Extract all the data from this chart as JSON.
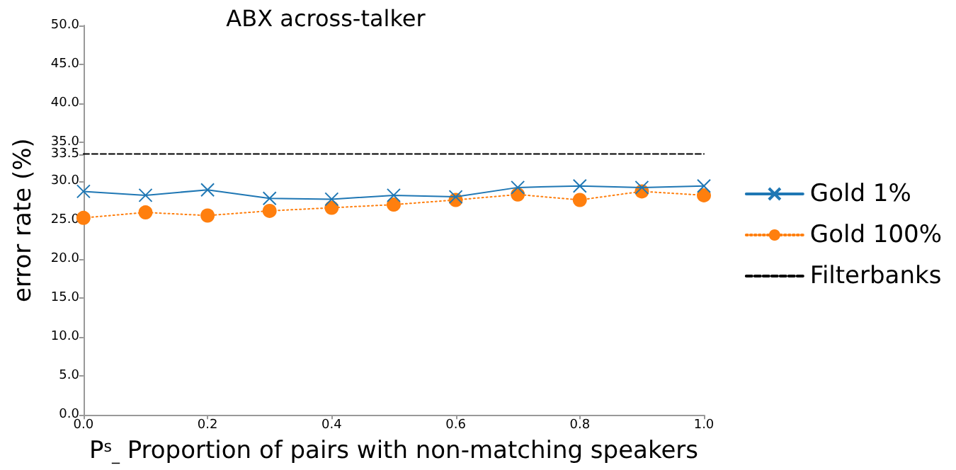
{
  "chart_data": {
    "type": "line",
    "title": "ABX across-talker",
    "xlabel": "P$^{s}$$_{_}$ Proportion of pairs with non-matching speakers",
    "ylabel": "error rate (%)",
    "x": [
      0.0,
      0.1,
      0.2,
      0.3,
      0.4,
      0.5,
      0.6,
      0.7,
      0.8,
      0.9,
      1.0
    ],
    "series": [
      {
        "name": "Gold 1%",
        "color": "#1f77b4",
        "marker": "cross",
        "line_style": "solid",
        "values": [
          28.7,
          28.2,
          28.9,
          27.8,
          27.7,
          28.2,
          28.0,
          29.2,
          29.4,
          29.2,
          29.4
        ]
      },
      {
        "name": "Gold 100%",
        "color": "#ff7f0e",
        "marker": "circle",
        "line_style": "dotted",
        "values": [
          25.3,
          26.0,
          25.6,
          26.2,
          26.6,
          27.0,
          27.6,
          28.3,
          27.6,
          28.7,
          28.2
        ]
      },
      {
        "name": "Filterbanks",
        "color": "#000000",
        "marker": "none",
        "line_style": "dashed",
        "x": [
          0.0,
          1.0
        ],
        "values": [
          33.5,
          33.5
        ]
      }
    ],
    "xlim": [
      0.0,
      1.0
    ],
    "ylim": [
      0.0,
      50.0
    ],
    "xticks": [
      {
        "value": 0,
        "label": "0.0"
      },
      {
        "value": 0.2,
        "label": "0.2"
      },
      {
        "value": 0.4,
        "label": "0.4"
      },
      {
        "value": 0.6,
        "label": "0.6"
      },
      {
        "value": 0.8,
        "label": "0.8"
      },
      {
        "value": 1,
        "label": "1.0"
      }
    ],
    "yticks": [
      {
        "value": 0,
        "label": "0.0"
      },
      {
        "value": 5,
        "label": "5.0"
      },
      {
        "value": 10,
        "label": "10.0"
      },
      {
        "value": 15,
        "label": "15.0"
      },
      {
        "value": 20,
        "label": "20.0"
      },
      {
        "value": 25,
        "label": "25.0"
      },
      {
        "value": 30,
        "label": "30.0"
      },
      33.5,
      {
        "value": 35,
        "label": "35.0"
      },
      {
        "value": 40,
        "label": "40.0"
      },
      {
        "value": 45,
        "label": "45.0"
      },
      {
        "value": 50,
        "label": "50.0"
      }
    ],
    "grid": false,
    "legend": "right"
  }
}
